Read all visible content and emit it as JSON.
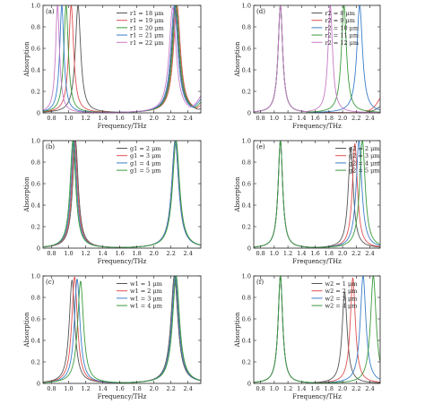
{
  "chart_data": [
    {
      "type": "line",
      "panel_label": "(a)",
      "xlabel": "Frequency/THz",
      "ylabel": "Absorption",
      "xlim": [
        0.7,
        2.55
      ],
      "ylim": [
        0,
        1.0
      ],
      "xticks": [
        "0.8",
        "1.0",
        "1.2",
        "1.4",
        "1.6",
        "1.8",
        "2.0",
        "2.2",
        "2.4"
      ],
      "yticks": [
        "0",
        "0.2",
        "0.4",
        "0.6",
        "0.8",
        "1.0"
      ],
      "legend_position": "top-center",
      "series": [
        {
          "name": "r1 = 18 μm",
          "color": "#555555",
          "peaks": [
            {
              "x": 1.11,
              "y": 1.0,
              "w": 0.038
            },
            {
              "x": 2.25,
              "y": 1.0,
              "w": 0.05
            }
          ],
          "tail": {
            "from": 2.4,
            "to": 2.55,
            "y0": 0.02,
            "y1": 0.04
          }
        },
        {
          "name": "r1 = 19 μm",
          "color": "#e05050",
          "peaks": [
            {
              "x": 1.03,
              "y": 1.0,
              "w": 0.035
            },
            {
              "x": 2.27,
              "y": 1.0,
              "w": 0.05
            }
          ],
          "tail": {
            "from": 2.4,
            "to": 2.55,
            "y0": 0.03,
            "y1": 0.07
          }
        },
        {
          "name": "r1 = 20 μm",
          "color": "#3a9a3a",
          "peaks": [
            {
              "x": 0.97,
              "y": 1.0,
              "w": 0.032
            },
            {
              "x": 2.26,
              "y": 1.0,
              "w": 0.05
            }
          ],
          "tail": {
            "from": 2.4,
            "to": 2.55,
            "y0": 0.03,
            "y1": 0.1
          }
        },
        {
          "name": "r1 = 21 μm",
          "color": "#3a7ec8",
          "peaks": [
            {
              "x": 0.92,
              "y": 1.0,
              "w": 0.03
            },
            {
              "x": 2.24,
              "y": 1.0,
              "w": 0.05
            }
          ],
          "tail": {
            "from": 2.4,
            "to": 2.55,
            "y0": 0.04,
            "y1": 0.13
          }
        },
        {
          "name": "r1 = 22 μm",
          "color": "#c77ac7",
          "peaks": [
            {
              "x": 0.87,
              "y": 1.0,
              "w": 0.028
            },
            {
              "x": 2.22,
              "y": 0.98,
              "w": 0.05
            }
          ],
          "tail": {
            "from": 2.4,
            "to": 2.55,
            "y0": 0.05,
            "y1": 0.16
          }
        }
      ]
    },
    {
      "type": "line",
      "panel_label": "(d)",
      "xlabel": "Frequency/THz",
      "ylabel": "Absorption",
      "xlim": [
        0.7,
        2.55
      ],
      "ylim": [
        0,
        1.0
      ],
      "xticks": [
        "0.8",
        "1.0",
        "1.2",
        "1.4",
        "1.6",
        "1.8",
        "2.0",
        "2.2",
        "2.4"
      ],
      "yticks": [
        "0",
        "0.2",
        "0.4",
        "0.6",
        "0.8",
        "1.0"
      ],
      "legend_position": "top-center",
      "series": [
        {
          "name": "r2 = 8 μm",
          "color": "#555555",
          "peaks": [
            {
              "x": 1.09,
              "y": 1.0,
              "w": 0.04
            }
          ],
          "tail": {
            "from": 2.35,
            "to": 2.55,
            "y0": 0.01,
            "y1": 0.06
          }
        },
        {
          "name": "r2 = 9 μm",
          "color": "#e05050",
          "peaks": [
            {
              "x": 1.09,
              "y": 1.0,
              "w": 0.04
            }
          ],
          "tail": {
            "from": 2.35,
            "to": 2.55,
            "y0": 0.02,
            "y1": 0.14
          }
        },
        {
          "name": "r2 = 10 μm",
          "color": "#3a7ec8",
          "peaks": [
            {
              "x": 1.09,
              "y": 1.0,
              "w": 0.04
            },
            {
              "x": 2.25,
              "y": 1.0,
              "w": 0.05
            }
          ]
        },
        {
          "name": "r2 = 11 μm",
          "color": "#3a9a3a",
          "peaks": [
            {
              "x": 1.09,
              "y": 1.0,
              "w": 0.04
            },
            {
              "x": 2.02,
              "y": 1.0,
              "w": 0.045
            }
          ]
        },
        {
          "name": "r2 = 12 μm",
          "color": "#c77ac7",
          "peaks": [
            {
              "x": 1.09,
              "y": 1.0,
              "w": 0.04
            },
            {
              "x": 1.82,
              "y": 1.0,
              "w": 0.04
            }
          ]
        }
      ]
    },
    {
      "type": "line",
      "panel_label": "(b)",
      "xlabel": "Frequency/THz",
      "ylabel": "Absorption",
      "xlim": [
        0.7,
        2.55
      ],
      "ylim": [
        0,
        1.0
      ],
      "xticks": [
        "0.8",
        "1.0",
        "1.2",
        "1.4",
        "1.6",
        "1.8",
        "2.0",
        "2.2",
        "2.4"
      ],
      "yticks": [
        "0",
        "0.2",
        "0.4",
        "0.6",
        "0.8",
        "1.0"
      ],
      "legend_position": "top-center",
      "series": [
        {
          "name": "g1 = 2 μm",
          "color": "#555555",
          "peaks": [
            {
              "x": 1.08,
              "y": 1.0,
              "w": 0.04
            },
            {
              "x": 2.25,
              "y": 1.0,
              "w": 0.05
            }
          ]
        },
        {
          "name": "g1 = 3 μm",
          "color": "#e05050",
          "peaks": [
            {
              "x": 1.07,
              "y": 1.0,
              "w": 0.04
            },
            {
              "x": 2.25,
              "y": 1.0,
              "w": 0.05
            }
          ]
        },
        {
          "name": "g1 = 4 μm",
          "color": "#3a7ec8",
          "peaks": [
            {
              "x": 1.06,
              "y": 1.0,
              "w": 0.04
            },
            {
              "x": 2.25,
              "y": 1.0,
              "w": 0.05
            }
          ]
        },
        {
          "name": "g1 = 5 μm",
          "color": "#3a9a3a",
          "peaks": [
            {
              "x": 1.05,
              "y": 1.0,
              "w": 0.04
            },
            {
              "x": 2.26,
              "y": 1.0,
              "w": 0.05
            }
          ]
        }
      ]
    },
    {
      "type": "line",
      "panel_label": "(e)",
      "xlabel": "Frequency/THz",
      "ylabel": "Absorption",
      "xlim": [
        0.7,
        2.55
      ],
      "ylim": [
        0,
        1.0
      ],
      "xticks": [
        "0.8",
        "1.0",
        "1.2",
        "1.4",
        "1.6",
        "1.8",
        "2.0",
        "2.2",
        "2.4"
      ],
      "yticks": [
        "0",
        "0.2",
        "0.4",
        "0.6",
        "0.8",
        "1.0"
      ],
      "legend_position": "top-right",
      "series": [
        {
          "name": "g2 = 2 μm",
          "color": "#555555",
          "peaks": [
            {
              "x": 1.09,
              "y": 1.0,
              "w": 0.04
            },
            {
              "x": 2.12,
              "y": 0.94,
              "w": 0.045
            }
          ]
        },
        {
          "name": "g2 = 3 μm",
          "color": "#e05050",
          "peaks": [
            {
              "x": 1.09,
              "y": 1.0,
              "w": 0.04
            },
            {
              "x": 2.18,
              "y": 0.97,
              "w": 0.045
            }
          ]
        },
        {
          "name": "g2 = 4 μm",
          "color": "#3a7ec8",
          "peaks": [
            {
              "x": 1.09,
              "y": 1.0,
              "w": 0.04
            },
            {
              "x": 2.24,
              "y": 1.0,
              "w": 0.05
            }
          ]
        },
        {
          "name": "g2 = 5 μm",
          "color": "#3a9a3a",
          "peaks": [
            {
              "x": 1.09,
              "y": 1.0,
              "w": 0.04
            },
            {
              "x": 2.29,
              "y": 1.0,
              "w": 0.05
            }
          ]
        }
      ]
    },
    {
      "type": "line",
      "panel_label": "(c)",
      "xlabel": "Frequency/THz",
      "ylabel": "Absorption",
      "xlim": [
        0.7,
        2.55
      ],
      "ylim": [
        0,
        1.0
      ],
      "xticks": [
        "0.8",
        "1.0",
        "1.2",
        "1.4",
        "1.6",
        "1.8",
        "2.0",
        "2.2",
        "2.4"
      ],
      "yticks": [
        "0",
        "0.2",
        "0.4",
        "0.6",
        "0.8",
        "1.0"
      ],
      "legend_position": "top-center",
      "series": [
        {
          "name": "w1 = 1 μm",
          "color": "#555555",
          "peaks": [
            {
              "x": 1.04,
              "y": 0.96,
              "w": 0.04
            },
            {
              "x": 2.24,
              "y": 1.0,
              "w": 0.05
            }
          ]
        },
        {
          "name": "w1 = 2 μm",
          "color": "#e05050",
          "peaks": [
            {
              "x": 1.07,
              "y": 0.99,
              "w": 0.04
            },
            {
              "x": 2.25,
              "y": 1.0,
              "w": 0.05
            }
          ]
        },
        {
          "name": "w1 = 3 μm",
          "color": "#3a7ec8",
          "peaks": [
            {
              "x": 1.1,
              "y": 0.97,
              "w": 0.04
            },
            {
              "x": 2.25,
              "y": 1.0,
              "w": 0.05
            }
          ]
        },
        {
          "name": "w1 = 4 μm",
          "color": "#3a9a3a",
          "peaks": [
            {
              "x": 1.14,
              "y": 0.95,
              "w": 0.042
            },
            {
              "x": 2.26,
              "y": 1.0,
              "w": 0.05
            }
          ]
        }
      ]
    },
    {
      "type": "line",
      "panel_label": "(f)",
      "xlabel": "Frequency/THz",
      "ylabel": "Absorption",
      "xlim": [
        0.7,
        2.55
      ],
      "ylim": [
        0,
        1.0
      ],
      "xticks": [
        "0.8",
        "1.0",
        "1.2",
        "1.4",
        "1.6",
        "1.8",
        "2.0",
        "2.2",
        "2.4"
      ],
      "yticks": [
        "0",
        "0.2",
        "0.4",
        "0.6",
        "0.8",
        "1.0"
      ],
      "legend_position": "top-center",
      "series": [
        {
          "name": "w2 = 1 μm",
          "color": "#555555",
          "peaks": [
            {
              "x": 1.09,
              "y": 1.0,
              "w": 0.04
            },
            {
              "x": 2.03,
              "y": 0.85,
              "w": 0.045
            }
          ]
        },
        {
          "name": "w2 = 2 μm",
          "color": "#e05050",
          "peaks": [
            {
              "x": 1.09,
              "y": 1.0,
              "w": 0.04
            },
            {
              "x": 2.15,
              "y": 0.98,
              "w": 0.045
            }
          ]
        },
        {
          "name": "w2 = 3 μm",
          "color": "#3a7ec8",
          "peaks": [
            {
              "x": 1.09,
              "y": 1.0,
              "w": 0.04
            },
            {
              "x": 2.3,
              "y": 1.0,
              "w": 0.05
            }
          ]
        },
        {
          "name": "w2 = 4 μm",
          "color": "#3a9a3a",
          "peaks": [
            {
              "x": 1.09,
              "y": 1.0,
              "w": 0.04
            },
            {
              "x": 2.45,
              "y": 1.0,
              "w": 0.05
            }
          ]
        }
      ]
    }
  ]
}
